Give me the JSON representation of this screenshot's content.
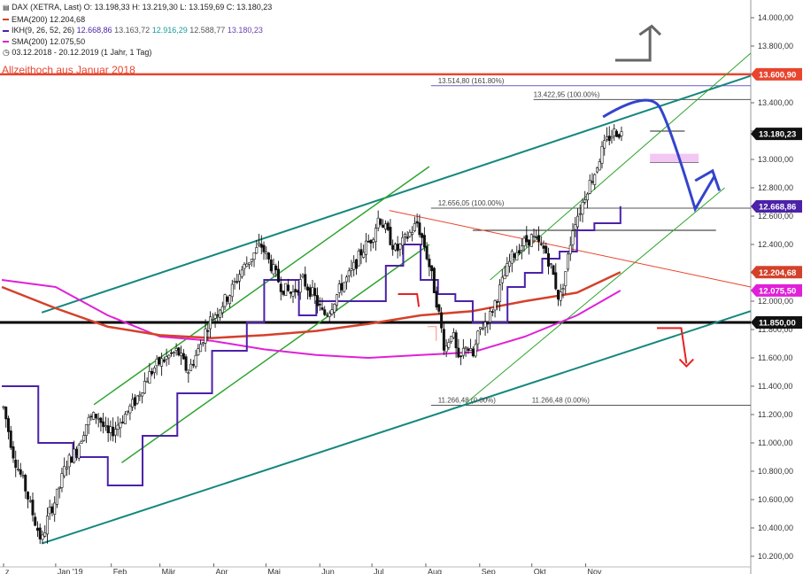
{
  "header": {
    "instrument": "DAX (XETRA, Last)",
    "ohlc": "O: 13.198,33  H: 13.219,30  L: 13.159,69  C: 13.180,23",
    "ema_label": "EMA(200)",
    "ema_value": "12.204,68",
    "ikh_label": "IKH(9, 26, 52, 26)",
    "ikh_v1": "12.668,86",
    "ikh_v2": "13.163,72",
    "ikh_v3": "12.916,29",
    "ikh_v4": "12.588,77",
    "ikh_v5": "13.180,23",
    "sma_label": "SMA(200)",
    "sma_value": "12.075,50",
    "period": "03.12.2018 - 20.12.2019  (1 Jahr, 1 Tag)"
  },
  "annotation": {
    "ath_text": "Allzeithoch aus Januar 2018"
  },
  "colors": {
    "candle": "#111111",
    "ema": "#d4412a",
    "ikh": "#4b22a8",
    "sma": "#e020d8",
    "channel": "#2ea52e",
    "trend": "#13877c",
    "support": "#000000",
    "resistance": "#e8452f",
    "fib": "#555555",
    "fib_top": "#6a5acd",
    "downtrend": "#e8452f",
    "projection": "#3344cc",
    "arrow_up": "#666666",
    "arrow_red": "#e82020"
  },
  "chart_data": {
    "type": "candlestick",
    "ylim": [
      10200,
      14100
    ],
    "y_ticks": [
      "10.200,00",
      "10.400,00",
      "10.600,00",
      "10.800,00",
      "11.000,00",
      "11.200,00",
      "11.400,00",
      "11.600,00",
      "11.800,00",
      "12.000,00",
      "12.200,00",
      "12.400,00",
      "12.600,00",
      "12.800,00",
      "13.000,00",
      "13.200,00",
      "13.400,00",
      "13.600,00",
      "13.800,00",
      "14.000,00"
    ],
    "x_labels": [
      {
        "label": "z",
        "day": 0
      },
      {
        "label": "Jan '19",
        "day": 30
      },
      {
        "label": "Feb",
        "day": 62
      },
      {
        "label": "Mär",
        "day": 90
      },
      {
        "label": "Apr",
        "day": 121
      },
      {
        "label": "Mai",
        "day": 151
      },
      {
        "label": "Jun",
        "day": 182
      },
      {
        "label": "Jul",
        "day": 212
      },
      {
        "label": "Aug",
        "day": 243
      },
      {
        "label": "Sep",
        "day": 274
      },
      {
        "label": "Okt",
        "day": 304
      },
      {
        "label": "Nov",
        "day": 335
      }
    ],
    "x_range_days": [
      -1,
      430
    ],
    "price_path": [
      [
        0,
        11250
      ],
      [
        6,
        10900
      ],
      [
        12,
        10700
      ],
      [
        18,
        10450
      ],
      [
        22,
        10300
      ],
      [
        26,
        10500
      ],
      [
        30,
        10600
      ],
      [
        36,
        10850
      ],
      [
        42,
        10950
      ],
      [
        48,
        11150
      ],
      [
        54,
        11200
      ],
      [
        60,
        11050
      ],
      [
        64,
        11100
      ],
      [
        70,
        11200
      ],
      [
        76,
        11300
      ],
      [
        82,
        11450
      ],
      [
        88,
        11550
      ],
      [
        94,
        11600
      ],
      [
        100,
        11650
      ],
      [
        106,
        11500
      ],
      [
        112,
        11650
      ],
      [
        118,
        11850
      ],
      [
        124,
        11950
      ],
      [
        130,
        12050
      ],
      [
        136,
        12200
      ],
      [
        142,
        12300
      ],
      [
        148,
        12400
      ],
      [
        152,
        12300
      ],
      [
        156,
        12200
      ],
      [
        160,
        12100
      ],
      [
        166,
        12050
      ],
      [
        172,
        12150
      ],
      [
        178,
        12050
      ],
      [
        184,
        11900
      ],
      [
        188,
        11950
      ],
      [
        194,
        12100
      ],
      [
        200,
        12200
      ],
      [
        206,
        12350
      ],
      [
        212,
        12450
      ],
      [
        216,
        12600
      ],
      [
        220,
        12500
      ],
      [
        226,
        12350
      ],
      [
        232,
        12450
      ],
      [
        238,
        12550
      ],
      [
        242,
        12400
      ],
      [
        246,
        12200
      ],
      [
        250,
        11950
      ],
      [
        254,
        11650
      ],
      [
        258,
        11800
      ],
      [
        262,
        11550
      ],
      [
        266,
        11700
      ],
      [
        270,
        11600
      ],
      [
        274,
        11800
      ],
      [
        280,
        11900
      ],
      [
        286,
        12100
      ],
      [
        292,
        12300
      ],
      [
        298,
        12400
      ],
      [
        304,
        12450
      ],
      [
        308,
        12400
      ],
      [
        312,
        12350
      ],
      [
        316,
        12200
      ],
      [
        320,
        12000
      ],
      [
        324,
        12250
      ],
      [
        328,
        12550
      ],
      [
        332,
        12650
      ],
      [
        336,
        12800
      ],
      [
        340,
        12900
      ],
      [
        344,
        13050
      ],
      [
        348,
        13150
      ],
      [
        352,
        13200
      ],
      [
        356,
        13180
      ]
    ],
    "ema200": [
      [
        -1,
        12100
      ],
      [
        30,
        11950
      ],
      [
        60,
        11820
      ],
      [
        90,
        11760
      ],
      [
        120,
        11740
      ],
      [
        150,
        11760
      ],
      [
        180,
        11790
      ],
      [
        210,
        11840
      ],
      [
        240,
        11900
      ],
      [
        270,
        11930
      ],
      [
        300,
        12000
      ],
      [
        330,
        12060
      ],
      [
        355,
        12205
      ]
    ],
    "sma200": [
      [
        -1,
        12150
      ],
      [
        30,
        12100
      ],
      [
        60,
        11900
      ],
      [
        90,
        11750
      ],
      [
        120,
        11720
      ],
      [
        150,
        11660
      ],
      [
        180,
        11620
      ],
      [
        210,
        11600
      ],
      [
        240,
        11620
      ],
      [
        270,
        11640
      ],
      [
        300,
        11750
      ],
      [
        330,
        11900
      ],
      [
        355,
        12075
      ]
    ],
    "ikh": [
      [
        -1,
        11400
      ],
      [
        20,
        11000
      ],
      [
        40,
        10900
      ],
      [
        60,
        10700
      ],
      [
        80,
        11050
      ],
      [
        100,
        11350
      ],
      [
        120,
        11650
      ],
      [
        140,
        11850
      ],
      [
        150,
        12150
      ],
      [
        160,
        12150
      ],
      [
        170,
        11900
      ],
      [
        180,
        12000
      ],
      [
        200,
        12000
      ],
      [
        220,
        12250
      ],
      [
        230,
        12400
      ],
      [
        240,
        12150
      ],
      [
        250,
        12050
      ],
      [
        260,
        12000
      ],
      [
        270,
        11850
      ],
      [
        280,
        11850
      ],
      [
        290,
        12100
      ],
      [
        300,
        12200
      ],
      [
        310,
        12300
      ],
      [
        320,
        12350
      ],
      [
        330,
        12500
      ],
      [
        340,
        12550
      ],
      [
        355,
        12670
      ]
    ],
    "levels": {
      "ath": 13600.9,
      "support": 11850.0,
      "fib_16180": "13.514,80 (161.80%)",
      "fib_10000_top": "13.422,95 (100.00%)",
      "fib_10000_mid": "12.656,05 (100.00%)",
      "fib_0_a": "11.266,48 (0.00%)",
      "fib_0_b": "11.266,48 (0.00%)"
    },
    "price_tags": [
      {
        "label": "13.600,90",
        "value": 13600.9,
        "kind": "ath"
      },
      {
        "label": "13.180,23",
        "value": 13180.23,
        "kind": "last"
      },
      {
        "label": "12.668,86",
        "value": 12668.86,
        "kind": "ikh"
      },
      {
        "label": "12.204,68",
        "value": 12204.68,
        "kind": "ema"
      },
      {
        "label": "12.075,50",
        "value": 12075.5,
        "kind": "sma"
      },
      {
        "label": "11.850,00",
        "value": 11850.0,
        "kind": "support"
      }
    ]
  }
}
